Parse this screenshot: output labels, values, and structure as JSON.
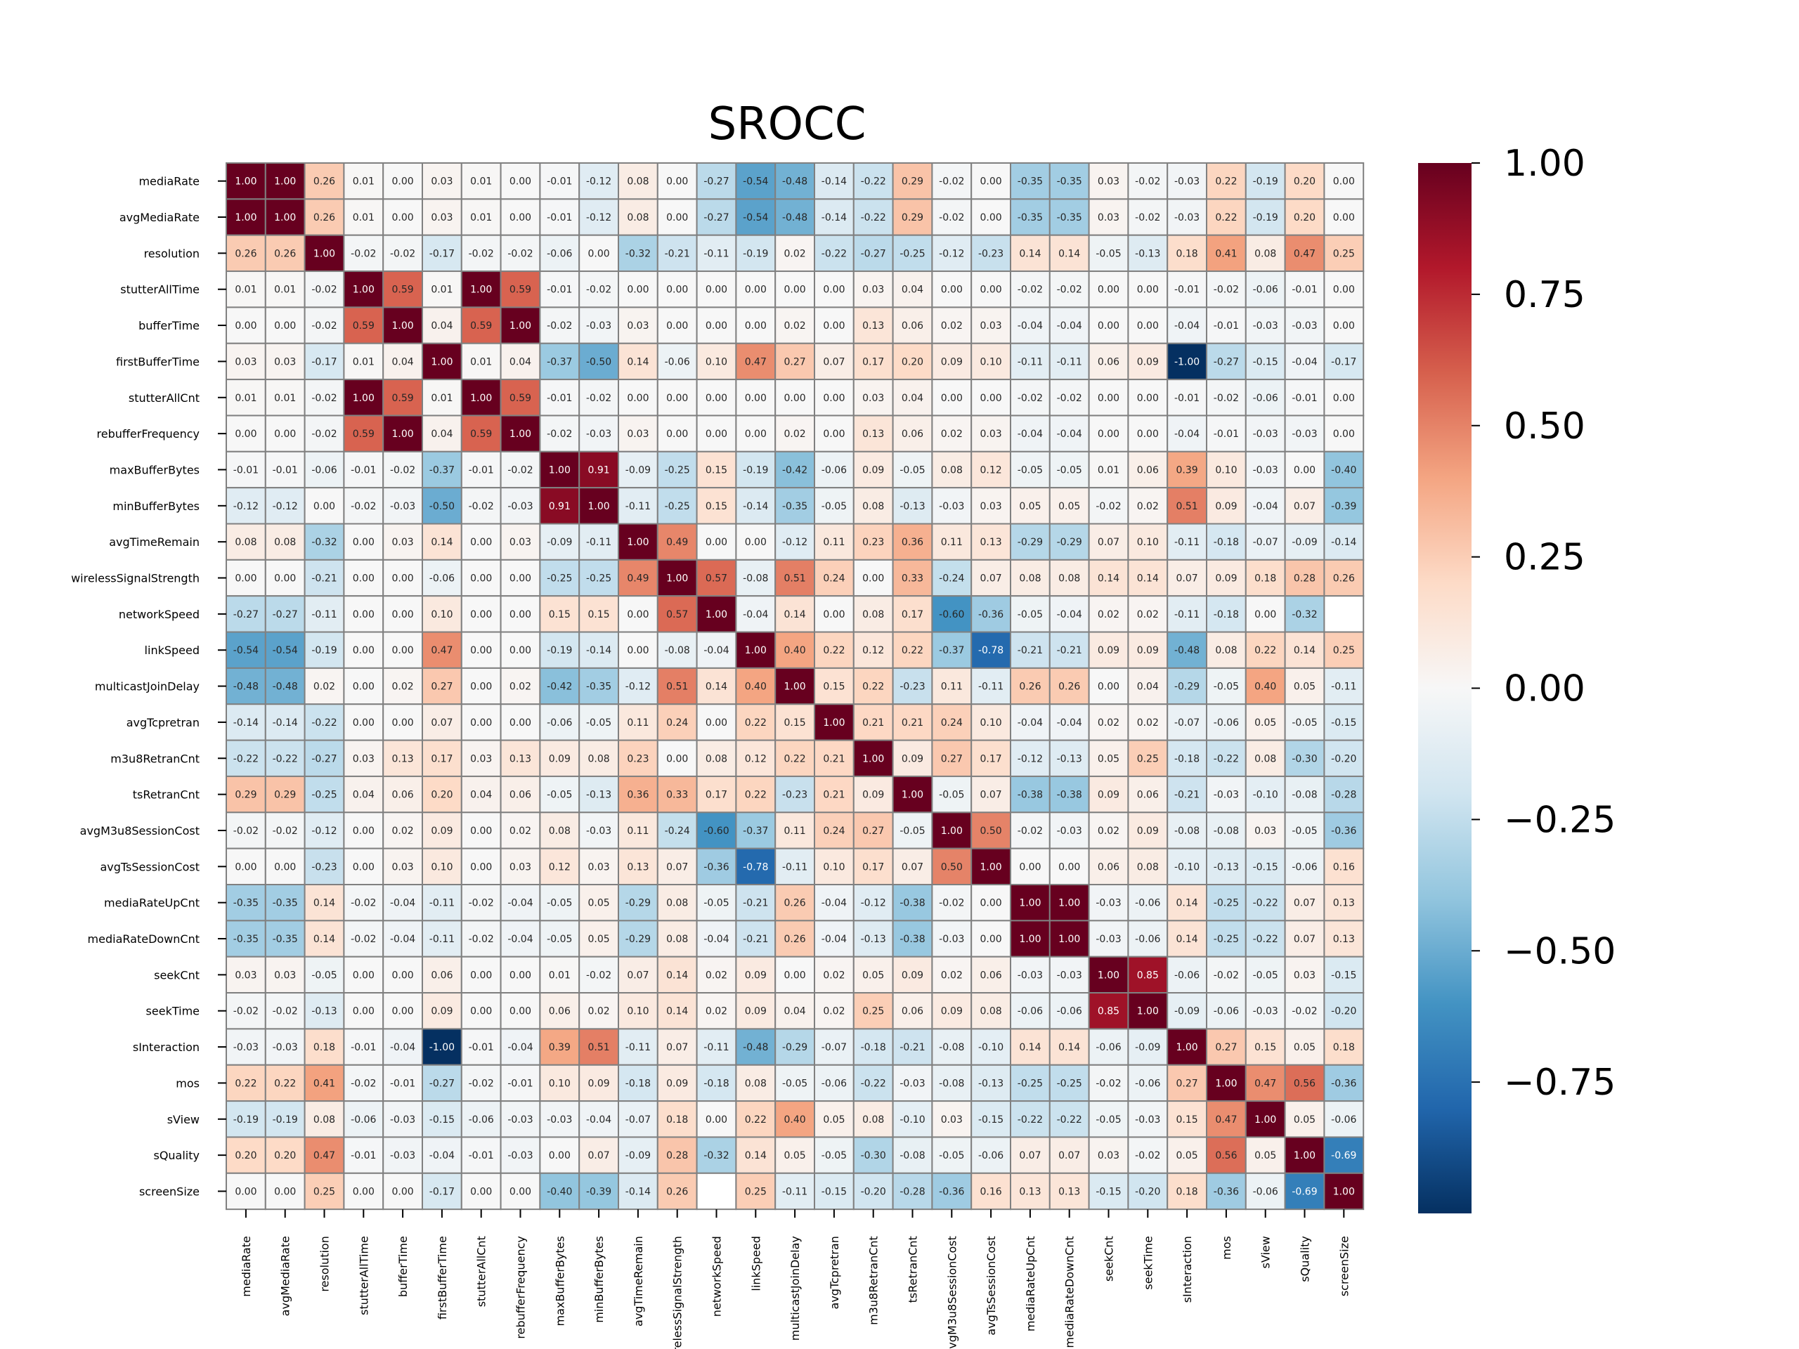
{
  "chart_data": {
    "type": "heatmap",
    "title": "SROCC",
    "variables": [
      "mediaRate",
      "avgMediaRate",
      "resolution",
      "stutterAllTime",
      "bufferTime",
      "firstBufferTime",
      "stutterAllCnt",
      "rebufferFrequency",
      "maxBufferBytes",
      "minBufferBytes",
      "avgTimeRemain",
      "wirelessSignalStrength",
      "networkSpeed",
      "linkSpeed",
      "multicastJoinDelay",
      "avgTcpretran",
      "m3u8RetranCnt",
      "tsRetranCnt",
      "avgM3u8SessionCost",
      "avgTsSessionCost",
      "mediaRateUpCnt",
      "mediaRateDownCnt",
      "seekCnt",
      "seekTime",
      "sInteraction",
      "mos",
      "sView",
      "sQuality",
      "screenSize"
    ],
    "matrix": [
      [
        1.0,
        1.0,
        0.26,
        0.01,
        0.0,
        0.03,
        0.01,
        0.0,
        -0.01,
        -0.12,
        0.08,
        0.0,
        -0.27,
        -0.54,
        -0.48,
        -0.14,
        -0.22,
        0.29,
        -0.02,
        0.0,
        -0.35,
        -0.35,
        0.03,
        -0.02,
        -0.03,
        0.22,
        -0.19,
        0.2,
        0.0
      ],
      [
        1.0,
        1.0,
        0.26,
        0.01,
        0.0,
        0.03,
        0.01,
        0.0,
        -0.01,
        -0.12,
        0.08,
        0.0,
        -0.27,
        -0.54,
        -0.48,
        -0.14,
        -0.22,
        0.29,
        -0.02,
        0.0,
        -0.35,
        -0.35,
        0.03,
        -0.02,
        -0.03,
        0.22,
        -0.19,
        0.2,
        0.0
      ],
      [
        0.26,
        0.26,
        1.0,
        -0.02,
        -0.02,
        -0.17,
        -0.02,
        -0.02,
        -0.06,
        0.0,
        -0.32,
        -0.21,
        -0.11,
        -0.19,
        0.02,
        -0.22,
        -0.27,
        -0.25,
        -0.12,
        -0.23,
        0.14,
        0.14,
        -0.05,
        -0.13,
        0.18,
        0.41,
        0.08,
        0.47,
        0.25
      ],
      [
        0.01,
        0.01,
        -0.02,
        1.0,
        0.59,
        0.01,
        1.0,
        0.59,
        -0.01,
        -0.02,
        0.0,
        0.0,
        0.0,
        0.0,
        0.0,
        0.0,
        0.03,
        0.04,
        0.0,
        0.0,
        -0.02,
        -0.02,
        0.0,
        0.0,
        -0.01,
        -0.02,
        -0.06,
        -0.01,
        0.0
      ],
      [
        0.0,
        0.0,
        -0.02,
        0.59,
        1.0,
        0.04,
        0.59,
        1.0,
        -0.02,
        -0.03,
        0.03,
        0.0,
        0.0,
        0.0,
        0.02,
        0.0,
        0.13,
        0.06,
        0.02,
        0.03,
        -0.04,
        -0.04,
        0.0,
        0.0,
        -0.04,
        -0.01,
        -0.03,
        -0.03,
        0.0
      ],
      [
        0.03,
        0.03,
        -0.17,
        0.01,
        0.04,
        1.0,
        0.01,
        0.04,
        -0.37,
        -0.5,
        0.14,
        -0.06,
        0.1,
        0.47,
        0.27,
        0.07,
        0.17,
        0.2,
        0.09,
        0.1,
        -0.11,
        -0.11,
        0.06,
        0.09,
        -1.0,
        -0.27,
        -0.15,
        -0.04,
        -0.17
      ],
      [
        0.01,
        0.01,
        -0.02,
        1.0,
        0.59,
        0.01,
        1.0,
        0.59,
        -0.01,
        -0.02,
        0.0,
        0.0,
        0.0,
        0.0,
        0.0,
        0.0,
        0.03,
        0.04,
        0.0,
        0.0,
        -0.02,
        -0.02,
        0.0,
        0.0,
        -0.01,
        -0.02,
        -0.06,
        -0.01,
        0.0
      ],
      [
        0.0,
        0.0,
        -0.02,
        0.59,
        1.0,
        0.04,
        0.59,
        1.0,
        -0.02,
        -0.03,
        0.03,
        0.0,
        0.0,
        0.0,
        0.02,
        0.0,
        0.13,
        0.06,
        0.02,
        0.03,
        -0.04,
        -0.04,
        0.0,
        0.0,
        -0.04,
        -0.01,
        -0.03,
        -0.03,
        0.0
      ],
      [
        -0.01,
        -0.01,
        -0.06,
        -0.01,
        -0.02,
        -0.37,
        -0.01,
        -0.02,
        1.0,
        0.91,
        -0.09,
        -0.25,
        0.15,
        -0.19,
        -0.42,
        -0.06,
        0.09,
        -0.05,
        0.08,
        0.12,
        -0.05,
        -0.05,
        0.01,
        0.06,
        0.39,
        0.1,
        -0.03,
        0.0,
        -0.4
      ],
      [
        -0.12,
        -0.12,
        0.0,
        -0.02,
        -0.03,
        -0.5,
        -0.02,
        -0.03,
        0.91,
        1.0,
        -0.11,
        -0.25,
        0.15,
        -0.14,
        -0.35,
        -0.05,
        0.08,
        -0.13,
        -0.03,
        0.03,
        0.05,
        0.05,
        -0.02,
        0.02,
        0.51,
        0.09,
        -0.04,
        0.07,
        -0.39
      ],
      [
        0.08,
        0.08,
        -0.32,
        0.0,
        0.03,
        0.14,
        0.0,
        0.03,
        -0.09,
        -0.11,
        1.0,
        0.49,
        0.0,
        0.0,
        -0.12,
        0.11,
        0.23,
        0.36,
        0.11,
        0.13,
        -0.29,
        -0.29,
        0.07,
        0.1,
        -0.11,
        -0.18,
        -0.07,
        -0.09,
        -0.14
      ],
      [
        0.0,
        0.0,
        -0.21,
        0.0,
        0.0,
        -0.06,
        0.0,
        0.0,
        -0.25,
        -0.25,
        0.49,
        1.0,
        0.57,
        -0.08,
        0.51,
        0.24,
        0.0,
        0.33,
        -0.24,
        0.07,
        0.08,
        0.08,
        0.14,
        0.14,
        0.07,
        0.09,
        0.18,
        0.28,
        0.26
      ],
      [
        -0.27,
        -0.27,
        -0.11,
        0.0,
        0.0,
        0.1,
        0.0,
        0.0,
        0.15,
        0.15,
        0.0,
        0.57,
        1.0,
        -0.04,
        0.14,
        0.0,
        0.08,
        0.17,
        -0.6,
        -0.36,
        -0.05,
        -0.04,
        0.02,
        0.02,
        -0.11,
        -0.18,
        0.0,
        -0.32,
        null
      ],
      [
        -0.54,
        -0.54,
        -0.19,
        0.0,
        0.0,
        0.47,
        0.0,
        0.0,
        -0.19,
        -0.14,
        0.0,
        -0.08,
        -0.04,
        1.0,
        0.4,
        0.22,
        0.12,
        0.22,
        -0.37,
        -0.78,
        -0.21,
        -0.21,
        0.09,
        0.09,
        -0.48,
        0.08,
        0.22,
        0.14,
        0.25
      ],
      [
        -0.48,
        -0.48,
        0.02,
        0.0,
        0.02,
        0.27,
        0.0,
        0.02,
        -0.42,
        -0.35,
        -0.12,
        0.51,
        0.14,
        0.4,
        1.0,
        0.15,
        0.22,
        -0.23,
        0.11,
        -0.11,
        0.26,
        0.26,
        0.0,
        0.04,
        -0.29,
        -0.05,
        0.4,
        0.05,
        -0.11
      ],
      [
        -0.14,
        -0.14,
        -0.22,
        0.0,
        0.0,
        0.07,
        0.0,
        0.0,
        -0.06,
        -0.05,
        0.11,
        0.24,
        0.0,
        0.22,
        0.15,
        1.0,
        0.21,
        0.21,
        0.24,
        0.1,
        -0.04,
        -0.04,
        0.02,
        0.02,
        -0.07,
        -0.06,
        0.05,
        -0.05,
        -0.15
      ],
      [
        -0.22,
        -0.22,
        -0.27,
        0.03,
        0.13,
        0.17,
        0.03,
        0.13,
        0.09,
        0.08,
        0.23,
        0.0,
        0.08,
        0.12,
        0.22,
        0.21,
        1.0,
        0.09,
        0.27,
        0.17,
        -0.12,
        -0.13,
        0.05,
        0.25,
        -0.18,
        -0.22,
        0.08,
        -0.3,
        -0.2
      ],
      [
        0.29,
        0.29,
        -0.25,
        0.04,
        0.06,
        0.2,
        0.04,
        0.06,
        -0.05,
        -0.13,
        0.36,
        0.33,
        0.17,
        0.22,
        -0.23,
        0.21,
        0.09,
        1.0,
        -0.05,
        0.07,
        -0.38,
        -0.38,
        0.09,
        0.06,
        -0.21,
        -0.03,
        -0.1,
        -0.08,
        -0.28
      ],
      [
        -0.02,
        -0.02,
        -0.12,
        0.0,
        0.02,
        0.09,
        0.0,
        0.02,
        0.08,
        -0.03,
        0.11,
        -0.24,
        -0.6,
        -0.37,
        0.11,
        0.24,
        0.27,
        -0.05,
        1.0,
        0.5,
        -0.02,
        -0.03,
        0.02,
        0.09,
        -0.08,
        -0.08,
        0.03,
        -0.05,
        -0.36
      ],
      [
        0.0,
        0.0,
        -0.23,
        0.0,
        0.03,
        0.1,
        0.0,
        0.03,
        0.12,
        0.03,
        0.13,
        0.07,
        -0.36,
        -0.78,
        -0.11,
        0.1,
        0.17,
        0.07,
        0.5,
        1.0,
        0.0,
        0.0,
        0.06,
        0.08,
        -0.1,
        -0.13,
        -0.15,
        -0.06,
        0.16
      ],
      [
        -0.35,
        -0.35,
        0.14,
        -0.02,
        -0.04,
        -0.11,
        -0.02,
        -0.04,
        -0.05,
        0.05,
        -0.29,
        0.08,
        -0.05,
        -0.21,
        0.26,
        -0.04,
        -0.12,
        -0.38,
        -0.02,
        0.0,
        1.0,
        1.0,
        -0.03,
        -0.06,
        0.14,
        -0.25,
        -0.22,
        0.07,
        0.13
      ],
      [
        -0.35,
        -0.35,
        0.14,
        -0.02,
        -0.04,
        -0.11,
        -0.02,
        -0.04,
        -0.05,
        0.05,
        -0.29,
        0.08,
        -0.04,
        -0.21,
        0.26,
        -0.04,
        -0.13,
        -0.38,
        -0.03,
        0.0,
        1.0,
        1.0,
        -0.03,
        -0.06,
        0.14,
        -0.25,
        -0.22,
        0.07,
        0.13
      ],
      [
        0.03,
        0.03,
        -0.05,
        0.0,
        0.0,
        0.06,
        0.0,
        0.0,
        0.01,
        -0.02,
        0.07,
        0.14,
        0.02,
        0.09,
        0.0,
        0.02,
        0.05,
        0.09,
        0.02,
        0.06,
        -0.03,
        -0.03,
        1.0,
        0.85,
        -0.06,
        -0.02,
        -0.05,
        0.03,
        -0.15
      ],
      [
        -0.02,
        -0.02,
        -0.13,
        0.0,
        0.0,
        0.09,
        0.0,
        0.0,
        0.06,
        0.02,
        0.1,
        0.14,
        0.02,
        0.09,
        0.04,
        0.02,
        0.25,
        0.06,
        0.09,
        0.08,
        -0.06,
        -0.06,
        0.85,
        1.0,
        -0.09,
        -0.06,
        -0.03,
        -0.02,
        -0.2
      ],
      [
        -0.03,
        -0.03,
        0.18,
        -0.01,
        -0.04,
        -1.0,
        -0.01,
        -0.04,
        0.39,
        0.51,
        -0.11,
        0.07,
        -0.11,
        -0.48,
        -0.29,
        -0.07,
        -0.18,
        -0.21,
        -0.08,
        -0.1,
        0.14,
        0.14,
        -0.06,
        -0.09,
        1.0,
        0.27,
        0.15,
        0.05,
        0.18
      ],
      [
        0.22,
        0.22,
        0.41,
        -0.02,
        -0.01,
        -0.27,
        -0.02,
        -0.01,
        0.1,
        0.09,
        -0.18,
        0.09,
        -0.18,
        0.08,
        -0.05,
        -0.06,
        -0.22,
        -0.03,
        -0.08,
        -0.13,
        -0.25,
        -0.25,
        -0.02,
        -0.06,
        0.27,
        1.0,
        0.47,
        0.56,
        -0.36
      ],
      [
        -0.19,
        -0.19,
        0.08,
        -0.06,
        -0.03,
        -0.15,
        -0.06,
        -0.03,
        -0.03,
        -0.04,
        -0.07,
        0.18,
        0.0,
        0.22,
        0.4,
        0.05,
        0.08,
        -0.1,
        0.03,
        -0.15,
        -0.22,
        -0.22,
        -0.05,
        -0.03,
        0.15,
        0.47,
        1.0,
        0.05,
        -0.06
      ],
      [
        0.2,
        0.2,
        0.47,
        -0.01,
        -0.03,
        -0.04,
        -0.01,
        -0.03,
        0.0,
        0.07,
        -0.09,
        0.28,
        -0.32,
        0.14,
        0.05,
        -0.05,
        -0.3,
        -0.08,
        -0.05,
        -0.06,
        0.07,
        0.07,
        0.03,
        -0.02,
        0.05,
        0.56,
        0.05,
        1.0,
        -0.69
      ],
      [
        0.0,
        0.0,
        0.25,
        0.0,
        0.0,
        -0.17,
        0.0,
        0.0,
        -0.4,
        -0.39,
        -0.14,
        0.26,
        null,
        0.25,
        -0.11,
        -0.15,
        -0.2,
        -0.28,
        -0.36,
        0.16,
        0.13,
        0.13,
        -0.15,
        -0.2,
        0.18,
        -0.36,
        -0.06,
        -0.69,
        1.0
      ]
    ],
    "colorbar": {
      "colormap": "RdBu_r",
      "vmin": -1.0,
      "vmax": 1.0,
      "ticks": [
        1.0,
        0.75,
        0.5,
        0.25,
        0.0,
        -0.25,
        -0.5,
        -0.75
      ],
      "tick_labels": [
        "1.00",
        "0.75",
        "0.50",
        "0.25",
        "0.00",
        "−0.25",
        "−0.50",
        "−0.75"
      ]
    }
  }
}
